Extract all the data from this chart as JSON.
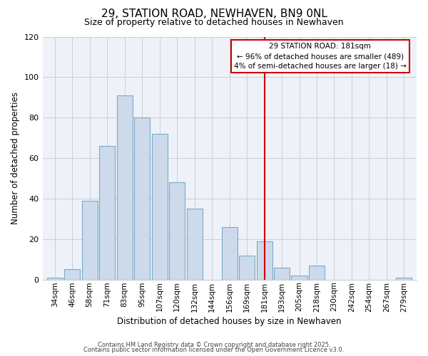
{
  "title": "29, STATION ROAD, NEWHAVEN, BN9 0NL",
  "subtitle": "Size of property relative to detached houses in Newhaven",
  "xlabel": "Distribution of detached houses by size in Newhaven",
  "ylabel": "Number of detached properties",
  "bar_labels": [
    "34sqm",
    "46sqm",
    "58sqm",
    "71sqm",
    "83sqm",
    "95sqm",
    "107sqm",
    "120sqm",
    "132sqm",
    "144sqm",
    "156sqm",
    "169sqm",
    "181sqm",
    "193sqm",
    "205sqm",
    "218sqm",
    "230sqm",
    "242sqm",
    "254sqm",
    "267sqm",
    "279sqm"
  ],
  "bar_values": [
    1,
    5,
    39,
    66,
    91,
    80,
    72,
    48,
    35,
    0,
    26,
    12,
    19,
    6,
    2,
    7,
    0,
    0,
    0,
    0,
    1
  ],
  "bar_color": "#ccdaeb",
  "bar_edge_color": "#7aaac8",
  "plot_bg_color": "#eef2f8",
  "ylim": [
    0,
    120
  ],
  "yticks": [
    0,
    20,
    40,
    60,
    80,
    100,
    120
  ],
  "vline_x_idx": 12,
  "vline_color": "#cc0000",
  "annotation_title": "29 STATION ROAD: 181sqm",
  "annotation_line1": "← 96% of detached houses are smaller (489)",
  "annotation_line2": "4% of semi-detached houses are larger (18) →",
  "annotation_box_facecolor": "#ffffff",
  "annotation_box_edgecolor": "#cc0000",
  "footer1": "Contains HM Land Registry data © Crown copyright and database right 2025.",
  "footer2": "Contains public sector information licensed under the Open Government Licence v3.0.",
  "background_color": "#ffffff",
  "grid_color": "#c8cfd8",
  "title_fontsize": 11,
  "subtitle_fontsize": 9
}
